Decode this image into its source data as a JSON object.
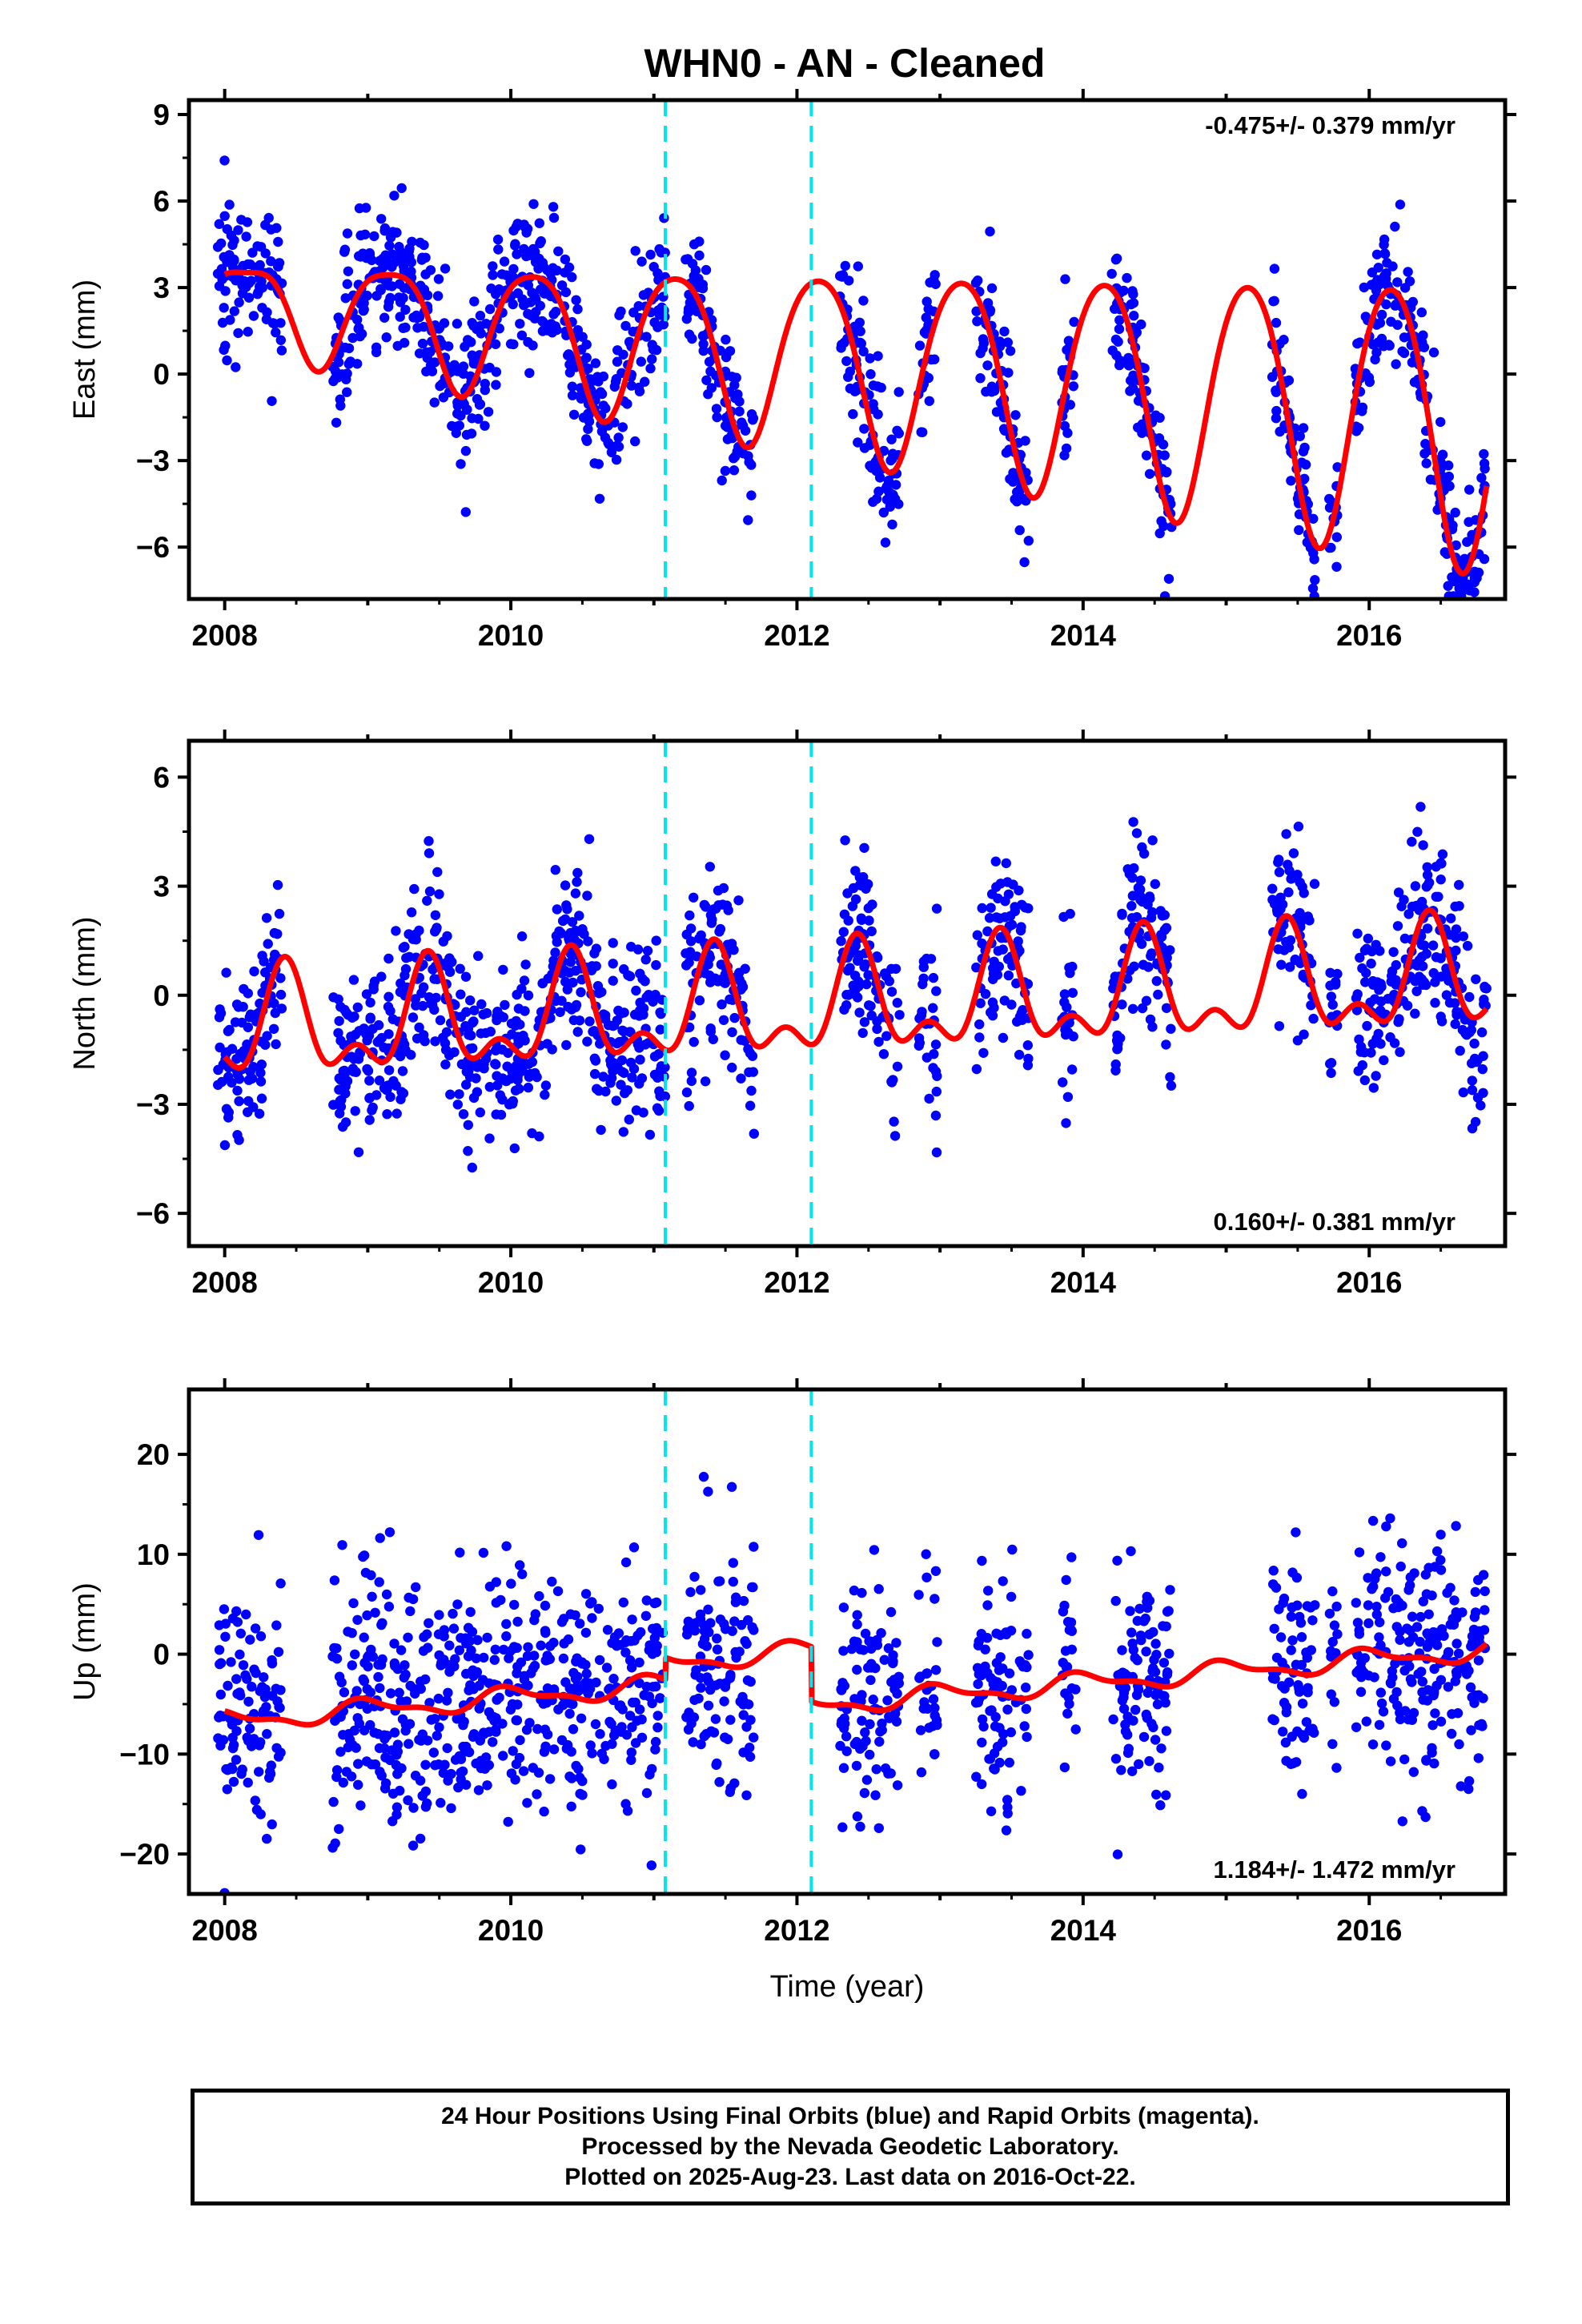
{
  "title": "WHN0  - AN - Cleaned",
  "colors": {
    "points": "#0000ff",
    "model": "#ff0000",
    "offsets": "#00e5ee",
    "frame": "#000000"
  },
  "chart_data": [
    {
      "type": "scatter",
      "name": "east",
      "ylabel": "East (mm)",
      "xlabel": "",
      "xlim": [
        2007.75,
        2016.95
      ],
      "ylim": [
        -7.8,
        9.5
      ],
      "yticks": [
        9,
        6,
        3,
        0,
        -3,
        -6
      ],
      "ytick_labels": [
        "9",
        "6",
        "3",
        "0",
        "−3",
        "−6"
      ],
      "xticks": [
        2008,
        2010,
        2012,
        2014,
        2016
      ],
      "xtick_labels": [
        "2008",
        "2010",
        "2012",
        "2014",
        "2016"
      ],
      "rate_text": "-0.475+/- 0.379 mm/yr",
      "rate_position": "top-right",
      "offsets": [
        2011.08,
        2012.1
      ],
      "model": {
        "offset": 0.4,
        "trend": -0.475,
        "t0": 2012.4,
        "amp": 3.2,
        "phase": 2014.15,
        "amp_modulation": 0.5,
        "semi_amp": 0.4,
        "semi_phase": 2013.9,
        "steps": []
      },
      "coverage": [
        [
          2007.95,
          2008.4
        ],
        [
          2008.75,
          2011.08
        ],
        [
          2011.22,
          2011.7
        ],
        [
          2012.3,
          2012.72
        ],
        [
          2012.85,
          2012.98
        ],
        [
          2013.25,
          2013.62
        ],
        [
          2013.85,
          2013.95
        ],
        [
          2014.2,
          2014.62
        ],
        [
          2015.32,
          2015.62
        ],
        [
          2015.72,
          2015.78
        ],
        [
          2015.9,
          2016.82
        ]
      ],
      "point_scatter": 1.2,
      "n_points": 1350
    },
    {
      "type": "scatter",
      "name": "north",
      "ylabel": "North (mm)",
      "xlabel": "",
      "xlim": [
        2007.75,
        2016.95
      ],
      "ylim": [
        -6.9,
        7.0
      ],
      "yticks": [
        6,
        3,
        0,
        -3,
        -6
      ],
      "ytick_labels": [
        "6",
        "3",
        "0",
        "−3",
        "−6"
      ],
      "xticks": [
        2008,
        2010,
        2012,
        2014,
        2016
      ],
      "xtick_labels": [
        "2008",
        "2010",
        "2012",
        "2014",
        "2016"
      ],
      "rate_text": "0.160+/- 0.381 mm/yr",
      "rate_position": "bottom-right",
      "offsets": [
        2011.08,
        2012.1
      ],
      "model": {
        "offset": -0.3,
        "trend": 0.16,
        "t0": 2012.4,
        "amp": 1.25,
        "phase": 2013.42,
        "amp_modulation": 0.0,
        "semi_amp": 0.75,
        "semi_phase": 2013.42,
        "steps": []
      },
      "coverage": [
        [
          2007.95,
          2008.4
        ],
        [
          2008.75,
          2011.08
        ],
        [
          2011.22,
          2011.7
        ],
        [
          2012.3,
          2012.72
        ],
        [
          2012.85,
          2012.98
        ],
        [
          2013.25,
          2013.62
        ],
        [
          2013.85,
          2013.95
        ],
        [
          2014.2,
          2014.62
        ],
        [
          2015.32,
          2015.62
        ],
        [
          2015.72,
          2015.78
        ],
        [
          2015.9,
          2016.82
        ]
      ],
      "point_scatter": 1.2,
      "n_points": 1350
    },
    {
      "type": "scatter",
      "name": "up",
      "ylabel": "Up (mm)",
      "xlabel": "Time (year)",
      "xlim": [
        2007.75,
        2016.95
      ],
      "ylim": [
        -24,
        26.5
      ],
      "yticks": [
        20,
        10,
        0,
        -10,
        -20
      ],
      "ytick_labels": [
        "20",
        "10",
        "0",
        "−10",
        "−20"
      ],
      "xticks": [
        2008,
        2010,
        2012,
        2014,
        2016
      ],
      "xtick_labels": [
        "2008",
        "2010",
        "2012",
        "2014",
        "2016"
      ],
      "rate_text": "1.184+/- 1.472 mm/yr",
      "rate_position": "bottom-right",
      "offsets": [
        2011.08,
        2012.1
      ],
      "model": {
        "offset": -1.5,
        "trend": 1.184,
        "t0": 2012.4,
        "amp": 0.9,
        "phase": 2012.0,
        "amp_modulation": 0.0,
        "semi_amp": 0.4,
        "semi_phase": 2011.9,
        "steps": [
          [
            2011.08,
            2.2
          ],
          [
            2012.1,
            -5.5
          ]
        ]
      },
      "coverage": [
        [
          2007.95,
          2008.4
        ],
        [
          2008.75,
          2011.08
        ],
        [
          2011.22,
          2011.7
        ],
        [
          2012.3,
          2012.72
        ],
        [
          2012.85,
          2012.98
        ],
        [
          2013.25,
          2013.62
        ],
        [
          2013.85,
          2013.95
        ],
        [
          2014.2,
          2014.62
        ],
        [
          2015.32,
          2015.62
        ],
        [
          2015.72,
          2015.78
        ],
        [
          2015.9,
          2016.82
        ]
      ],
      "point_scatter": 6.0,
      "n_points": 1350
    }
  ],
  "footer": {
    "line1": "24 Hour Positions Using Final Orbits (blue) and Rapid Orbits (magenta).",
    "line2": "Processed by the Nevada Geodetic Laboratory.",
    "line3": "Plotted on 2025-Aug-23. Last data on 2016-Oct-22."
  }
}
